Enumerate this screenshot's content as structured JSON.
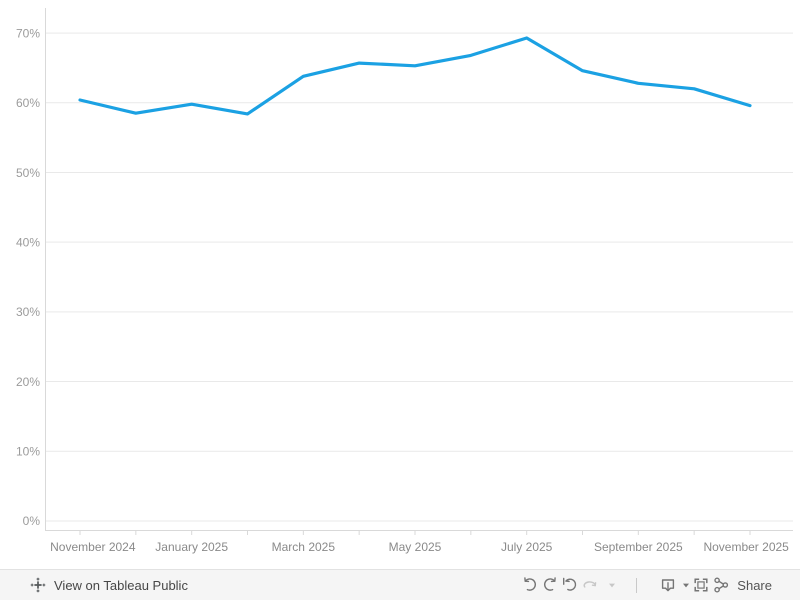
{
  "chart_data": {
    "type": "line",
    "title": "",
    "xlabel": "",
    "ylabel": "",
    "x": [
      "November 2024",
      "December 2024",
      "January 2025",
      "February 2025",
      "March 2025",
      "April 2025",
      "May 2025",
      "June 2025",
      "July 2025",
      "August 2025",
      "September 2025",
      "October 2025",
      "November 2025"
    ],
    "values": [
      60.4,
      58.5,
      59.8,
      58.4,
      63.8,
      65.7,
      65.3,
      66.8,
      69.3,
      64.6,
      62.8,
      62.0,
      59.6
    ],
    "x_ticks_shown": [
      "November 2024",
      "January 2025",
      "March 2025",
      "May 2025",
      "July 2025",
      "September 2025",
      "November 2025"
    ],
    "y_ticks": [
      0,
      10,
      20,
      30,
      40,
      50,
      60,
      70
    ],
    "y_tick_suffix": "%",
    "ylim": [
      -1.3,
      73.6
    ],
    "grid": true,
    "legend_position": "none",
    "line_color": "#1BA1E3"
  },
  "toolbar": {
    "view_on_label": "View on Tableau Public",
    "share_label": "Share",
    "logo_icon": "tableau-logo-icon",
    "buttons": [
      {
        "name": "undo",
        "icon": "undo-icon",
        "disabled": false
      },
      {
        "name": "redo",
        "icon": "redo-icon",
        "disabled": false
      },
      {
        "name": "replay",
        "icon": "replay-icon",
        "disabled": false
      },
      {
        "name": "refresh",
        "icon": "refresh-icon",
        "disabled": true
      },
      {
        "name": "refresh-dropdown",
        "icon": "caret-down-icon",
        "disabled": true
      },
      {
        "name": "download",
        "icon": "download-icon",
        "disabled": false
      },
      {
        "name": "download-dropdown",
        "icon": "caret-down-icon",
        "disabled": false
      },
      {
        "name": "fullscreen",
        "icon": "fullscreen-icon",
        "disabled": false
      },
      {
        "name": "share",
        "icon": "share-icon",
        "label": "Share",
        "disabled": false
      }
    ]
  },
  "colors": {
    "line": "#1BA1E3",
    "grid": "#e9e9e9",
    "axis": "#d9d9d9",
    "y_tick_label": "#9b9b9b",
    "x_tick_label": "#8a8a8a",
    "toolbar_bg": "#f5f5f5",
    "toolbar_border": "#e2e2e2",
    "toolbar_icon": "#757575",
    "toolbar_icon_disabled": "#c7c7c7",
    "toolbar_text": "#474747",
    "logo": "#54585a"
  }
}
